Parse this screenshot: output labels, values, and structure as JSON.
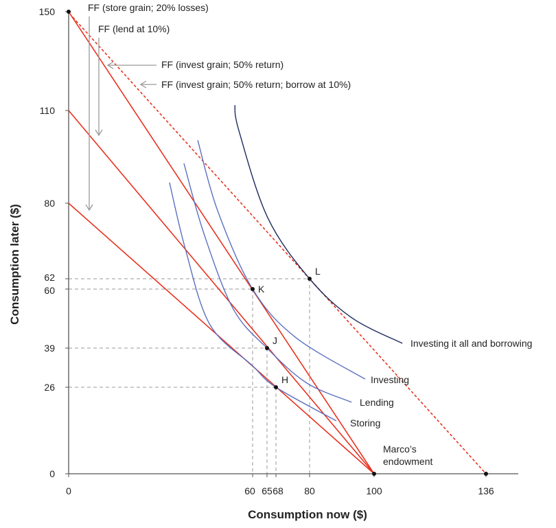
{
  "chart_data": {
    "type": "line",
    "xlabel": "Consumption now ($)",
    "ylabel": "Consumption later ($)",
    "xlim": [
      0,
      136
    ],
    "ylim": [
      0,
      150
    ],
    "grid": false,
    "x_ticks": [
      0,
      60,
      65,
      68,
      80,
      100,
      136
    ],
    "y_ticks": [
      0,
      26,
      39,
      60,
      62,
      80,
      110,
      150
    ],
    "colors": {
      "budget": "#e8321e",
      "indiff": "#5b6fc0",
      "indiff_top": "#1c2a5c",
      "guide": "#999999",
      "arrow": "#999999"
    },
    "budget_lines": [
      {
        "name": "FF (store grain; 20% losses)",
        "from": [
          0,
          80
        ],
        "to": [
          100,
          0
        ],
        "dashed": false
      },
      {
        "name": "FF (lend at 10%)",
        "from": [
          0,
          110
        ],
        "to": [
          100,
          0
        ],
        "dashed": false
      },
      {
        "name": "FF (invest grain; 50% return)",
        "from": [
          0,
          150
        ],
        "to": [
          100,
          0
        ],
        "dashed": false
      },
      {
        "name": "FF (invest grain; 50% return; borrow at 10%)",
        "from": [
          0,
          150
        ],
        "to": [
          136,
          0
        ],
        "dashed": true
      }
    ],
    "indifference_curves": [
      {
        "name": "Storing",
        "points": [
          [
            32.9,
            86.7
          ],
          [
            38.1,
            69.0
          ],
          [
            46.1,
            47.3
          ],
          [
            59.8,
            33.3
          ],
          [
            68,
            26
          ],
          [
            88.3,
            15.9
          ]
        ]
      },
      {
        "name": "Lending",
        "points": [
          [
            37.6,
            92.9
          ],
          [
            44.1,
            72.8
          ],
          [
            53.7,
            52.9
          ],
          [
            65,
            39
          ],
          [
            79.0,
            27.4
          ],
          [
            93.0,
            21.5
          ]
        ]
      },
      {
        "name": "Investing",
        "points": [
          [
            42.1,
            100.4
          ],
          [
            48.6,
            78.2
          ],
          [
            60,
            60
          ],
          [
            74.9,
            42.9
          ],
          [
            97.2,
            28.7
          ]
        ]
      },
      {
        "name": "Investing it all and borrowing",
        "points": [
          [
            54.2,
            112.2
          ],
          [
            55.5,
            103.6
          ],
          [
            65.2,
            76.6
          ],
          [
            80,
            62
          ],
          [
            93.2,
            49.7
          ],
          [
            109.1,
            40.7
          ]
        ],
        "dark": true
      }
    ],
    "points": [
      {
        "label": "H",
        "x": 68,
        "y": 26,
        "guides": true
      },
      {
        "label": "J",
        "x": 65,
        "y": 39,
        "guides": true
      },
      {
        "label": "K",
        "x": 60,
        "y": 60,
        "guides": true
      },
      {
        "label": "L",
        "x": 80,
        "y": 62,
        "guides": true
      },
      {
        "label": "",
        "x": 100,
        "y": 0,
        "guides": false
      },
      {
        "label": "",
        "x": 136,
        "y": 0,
        "guides": false
      },
      {
        "label": "",
        "x": 0,
        "y": 150,
        "guides": false
      }
    ],
    "annotations": {
      "endowment_line1": "Marco’s",
      "endowment_line2": "endowment"
    }
  }
}
